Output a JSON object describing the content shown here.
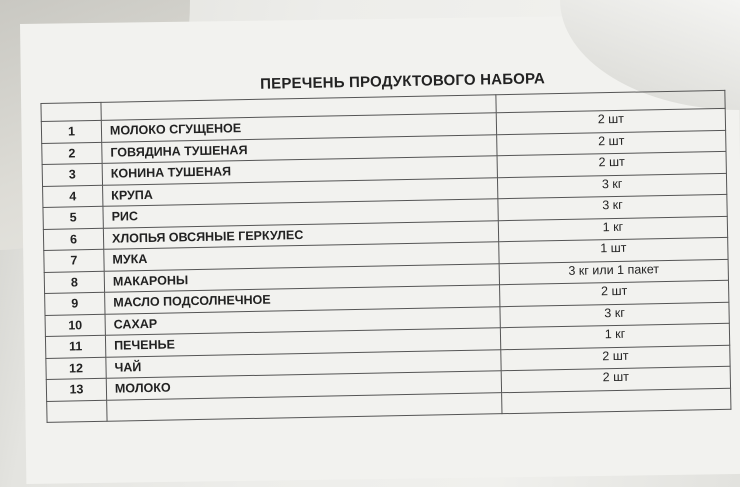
{
  "document": {
    "title": "ПЕРЕЧЕНЬ ПРОДУКТОВОГО НАБОРА",
    "rows": [
      {
        "num": "1",
        "name": "МОЛОКО СГУЩЕНОЕ",
        "qty": "2 шт"
      },
      {
        "num": "2",
        "name": "ГОВЯДИНА  ТУШЕНАЯ",
        "qty": "2 шт"
      },
      {
        "num": "3",
        "name": "КОНИНА ТУШЕНАЯ",
        "qty": "2 шт"
      },
      {
        "num": "4",
        "name": "КРУПА",
        "qty": "3 кг"
      },
      {
        "num": "5",
        "name": "РИС",
        "qty": "3 кг"
      },
      {
        "num": "6",
        "name": "ХЛОПЬЯ ОВСЯНЫЕ ГЕРКУЛЕС",
        "qty": "1 кг"
      },
      {
        "num": "7",
        "name": "МУКА",
        "qty": "1 шт"
      },
      {
        "num": "8",
        "name": "МАКАРОНЫ",
        "qty": "3 кг или 1 пакет"
      },
      {
        "num": "9",
        "name": "МАСЛО  ПОДСОЛНЕЧНОЕ",
        "qty": "2 шт"
      },
      {
        "num": "10",
        "name": "САХАР",
        "qty": "3 кг"
      },
      {
        "num": "11",
        "name": "ПЕЧЕНЬЕ",
        "qty": "1 кг"
      },
      {
        "num": "12",
        "name": "ЧАЙ",
        "qty": "2 шт"
      },
      {
        "num": "13",
        "name": "МОЛОКО",
        "qty": "2 шт"
      }
    ]
  }
}
